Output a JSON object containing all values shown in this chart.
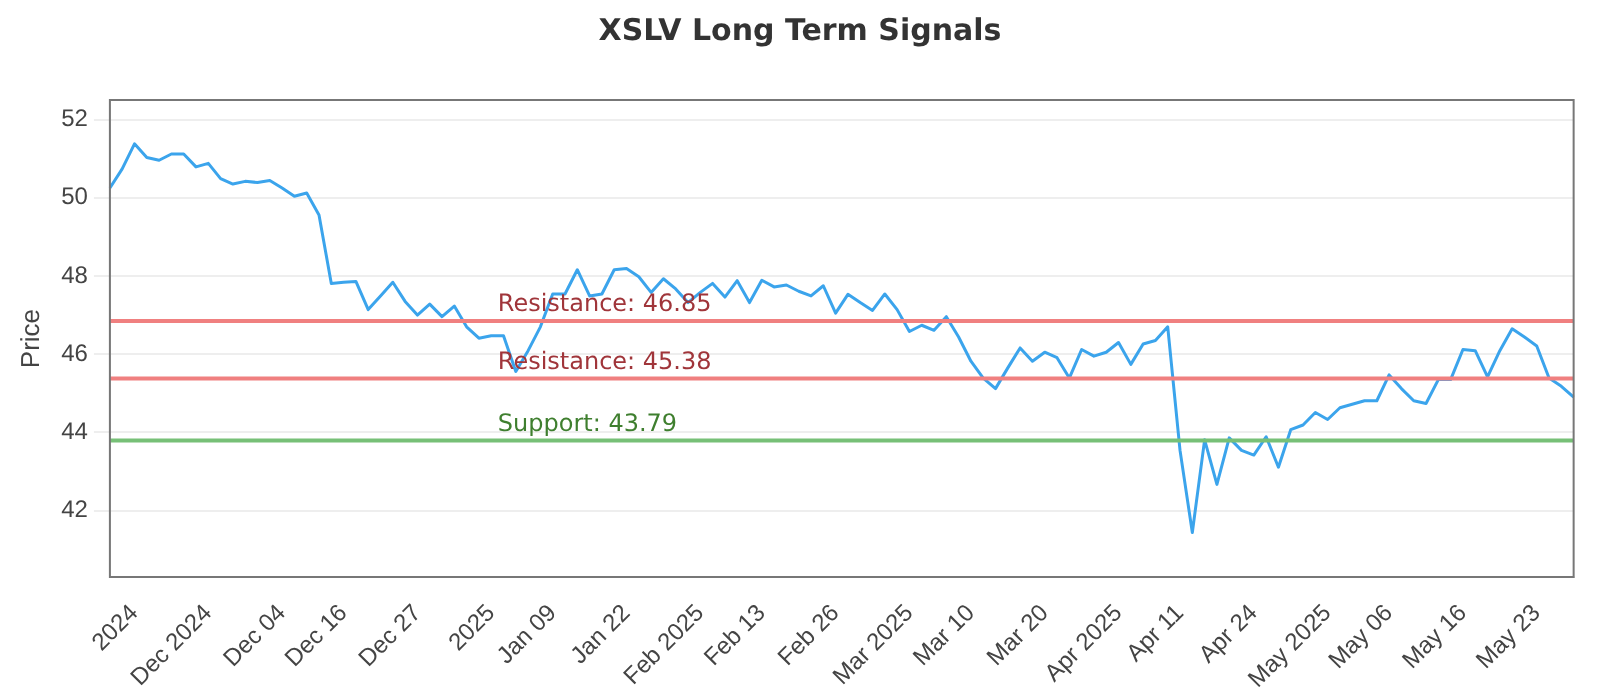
{
  "chart_data": {
    "type": "line",
    "title": "XSLV Long Term Signals",
    "ylabel": "Price",
    "categories": [
      null,
      null,
      "2024",
      null,
      null,
      null,
      null,
      null,
      "Dec 2024",
      null,
      null,
      null,
      null,
      null,
      "Dec 04",
      null,
      null,
      null,
      null,
      "Dec 16",
      null,
      null,
      null,
      null,
      null,
      "Dec 27",
      null,
      null,
      null,
      null,
      null,
      "2025",
      null,
      null,
      null,
      null,
      "Jan 09",
      null,
      null,
      null,
      null,
      null,
      "Jan 22",
      null,
      null,
      null,
      null,
      null,
      "Feb 2025",
      null,
      null,
      null,
      null,
      "Feb 13",
      null,
      null,
      null,
      null,
      null,
      "Feb 26",
      null,
      null,
      null,
      null,
      null,
      "Mar 2025",
      null,
      null,
      null,
      null,
      "Mar 10",
      null,
      null,
      null,
      null,
      null,
      "Mar 20",
      null,
      null,
      null,
      null,
      null,
      "Apr 2025",
      null,
      null,
      null,
      null,
      "Apr 11",
      null,
      null,
      null,
      null,
      null,
      "Apr 24",
      null,
      null,
      null,
      null,
      null,
      "May 2025",
      null,
      null,
      null,
      null,
      "May 06",
      null,
      null,
      null,
      null,
      null,
      "May 16",
      null,
      null,
      null,
      null,
      null,
      "May 23",
      null,
      null,
      null
    ],
    "series": [
      {
        "color": "#3ba4ec",
        "values": [
          50.25,
          50.74,
          51.38,
          51.03,
          50.96,
          51.12,
          51.12,
          50.79,
          50.88,
          50.49,
          50.35,
          50.42,
          50.39,
          50.44,
          50.25,
          50.04,
          50.12,
          49.56,
          47.81,
          47.84,
          47.86,
          47.14,
          47.49,
          47.84,
          47.35,
          47.0,
          47.28,
          46.96,
          47.23,
          46.7,
          46.41,
          46.47,
          46.47,
          45.56,
          46.09,
          46.7,
          47.54,
          47.54,
          48.16,
          47.49,
          47.54,
          48.16,
          48.19,
          47.98,
          47.58,
          47.93,
          47.67,
          47.32,
          47.58,
          47.81,
          47.46,
          47.88,
          47.32,
          47.89,
          47.72,
          47.77,
          47.61,
          47.49,
          47.75,
          47.05,
          47.53,
          47.32,
          47.12,
          47.54,
          47.14,
          46.58,
          46.74,
          46.61,
          46.96,
          46.44,
          45.82,
          45.39,
          45.12,
          45.65,
          46.16,
          45.82,
          46.05,
          45.91,
          45.39,
          46.12,
          45.95,
          46.05,
          46.3,
          45.74,
          46.26,
          46.35,
          46.7,
          43.54,
          41.44,
          43.81,
          42.67,
          43.86,
          43.54,
          43.42,
          43.89,
          43.11,
          44.07,
          44.19,
          44.51,
          44.33,
          44.63,
          44.72,
          44.81,
          44.81,
          45.47,
          45.12,
          44.81,
          44.74,
          45.35,
          45.35,
          46.12,
          46.09,
          45.42,
          46.09,
          46.65,
          46.44,
          46.21,
          45.39,
          45.18,
          44.9
        ]
      }
    ],
    "ylim": [
      40.3,
      52.5
    ],
    "yticks": [
      42,
      44,
      46,
      48,
      50,
      52
    ],
    "grid": "y",
    "legend": false,
    "marker": "none",
    "line_style": "solid",
    "ref_lines": [
      {
        "axis": "y",
        "value": 46.85,
        "label": "Resistance: 46.85",
        "color": "#f08080"
      },
      {
        "axis": "y",
        "value": 45.38,
        "label": "Resistance: 45.38",
        "color": "#f08080"
      },
      {
        "axis": "y",
        "value": 43.79,
        "label": "Support: 43.79",
        "color": "#77c077"
      }
    ]
  }
}
